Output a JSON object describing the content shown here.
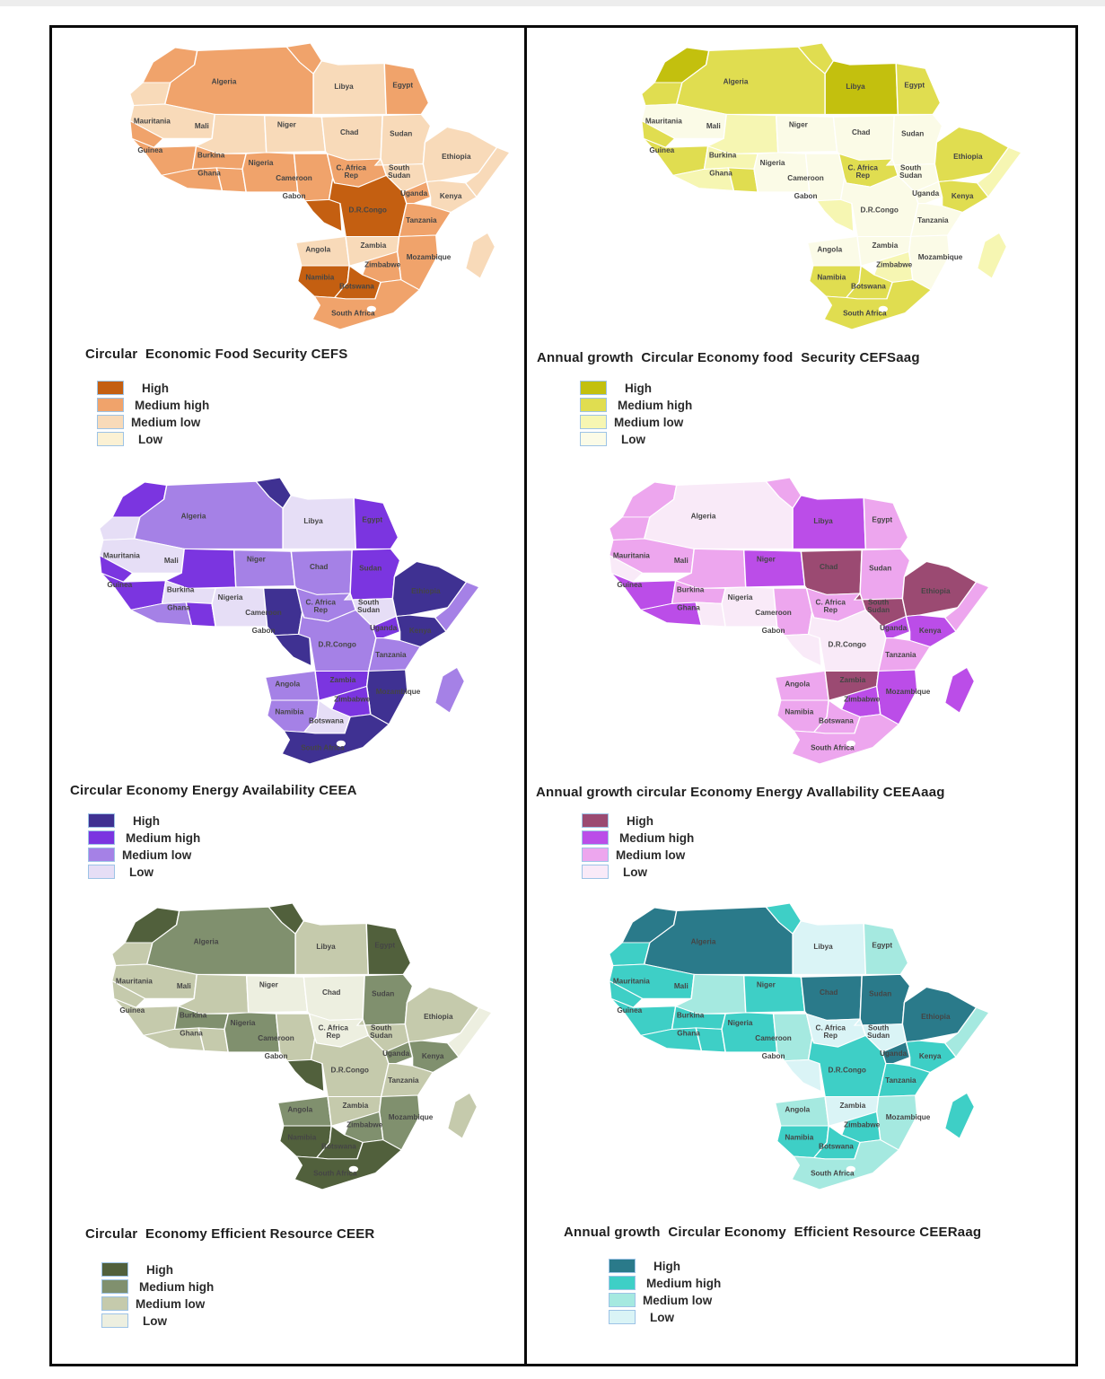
{
  "page": {
    "background": "#ffffff",
    "top_strip_color": "#ededed",
    "frame_border_color": "#0a0a0a"
  },
  "legend_labels": [
    "High",
    "Medium high",
    "Medium low",
    "Low"
  ],
  "country_labels": {
    "algeria": "Algeria",
    "libya": "Libya",
    "egypt": "Egypt",
    "mauritania": "Mauritania",
    "mali": "Mali",
    "niger": "Niger",
    "chad": "Chad",
    "sudan": "Sudan",
    "guinea": "Guinea",
    "burkina": "Burkina",
    "ghana": "Ghana",
    "nigeria": "Nigeria",
    "car": [
      "C. Africa",
      "Rep"
    ],
    "south_sudan": [
      "South",
      "Sudan"
    ],
    "ethiopia": "Ethiopia",
    "cameroon": "Cameroon",
    "gabon_congo": "Gabon",
    "drcongo": "D.R.Congo",
    "uganda": "Uganda",
    "kenya": "Kenya",
    "tanzania": "Tanzania",
    "angola": "Angola",
    "zambia": "Zambia",
    "mozambique": "Mozambique",
    "zimbabwe": "Zimbabwe",
    "namibia": "Namibia",
    "botswana": "Botswana",
    "south_africa": "South Africa"
  },
  "chart_data": [
    {
      "id": "cefs",
      "type": "choropleth_map",
      "region": "Africa",
      "title": "Circular  Economic Food Security CEFS",
      "legend": [
        {
          "level": "H",
          "label": "High",
          "color": "#c45f11"
        },
        {
          "level": "MH",
          "label": "Medium high",
          "color": "#f0a36b"
        },
        {
          "level": "ML",
          "label": "Medium low",
          "color": "#f8dab9"
        },
        {
          "level": "L",
          "label": "Low",
          "color": "#fbf1d4"
        }
      ],
      "values": {
        "morocco": "MH",
        "western_sahara": "ML",
        "algeria": "MH",
        "tunisia": "MH",
        "libya": "ML",
        "egypt": "MH",
        "mauritania": "ML",
        "mali": "ML",
        "niger": "ML",
        "chad": "ML",
        "sudan": "ML",
        "senegal": "MH",
        "guinea": "MH",
        "ivory_coast": "MH",
        "burkina": "MH",
        "ghana": "MH",
        "nigeria": "MH",
        "cameroon": "MH",
        "car": "MH",
        "south_sudan": "ML",
        "ethiopia": "ML",
        "somalia": "ML",
        "gabon_congo": "H",
        "drcongo": "H",
        "uganda": "MH",
        "kenya": "ML",
        "tanzania": "MH",
        "angola": "ML",
        "zambia": "ML",
        "mozambique": "MH",
        "zimbabwe": "MH",
        "namibia": "H",
        "botswana": "H",
        "south_africa": "MH",
        "madagascar": "ML"
      }
    },
    {
      "id": "cefsaag",
      "type": "choropleth_map",
      "region": "Africa",
      "title": "Annual growth  Circular Economy food  Security CEFSaag",
      "legend": [
        {
          "level": "H",
          "label": "High",
          "color": "#c3c00e"
        },
        {
          "level": "MH",
          "label": "Medium high",
          "color": "#e0dd50"
        },
        {
          "level": "ML",
          "label": "Medium low",
          "color": "#f6f6b2"
        },
        {
          "level": "L",
          "label": "Low",
          "color": "#fbfbe7"
        }
      ],
      "values": {
        "morocco": "H",
        "western_sahara": "MH",
        "algeria": "MH",
        "tunisia": "MH",
        "libya": "H",
        "egypt": "MH",
        "mauritania": "L",
        "mali": "ML",
        "niger": "L",
        "chad": "L",
        "sudan": "L",
        "senegal": "MH",
        "guinea": "MH",
        "ivory_coast": "ML",
        "burkina": "ML",
        "ghana": "MH",
        "nigeria": "L",
        "cameroon": "L",
        "car": "MH",
        "south_sudan": "L",
        "ethiopia": "MH",
        "somalia": "ML",
        "gabon_congo": "ML",
        "drcongo": "L",
        "uganda": "L",
        "kenya": "MH",
        "tanzania": "L",
        "angola": "L",
        "zambia": "L",
        "mozambique": "L",
        "zimbabwe": "ML",
        "namibia": "MH",
        "botswana": "MH",
        "south_africa": "MH",
        "madagascar": "ML"
      }
    },
    {
      "id": "ceea",
      "type": "choropleth_map",
      "region": "Africa",
      "title": "Circular Economy Energy Availability CEEA",
      "legend": [
        {
          "level": "H",
          "label": "High",
          "color": "#3f3192"
        },
        {
          "level": "MH",
          "label": "Medium high",
          "color": "#7b35e0"
        },
        {
          "level": "ML",
          "label": "Medium low",
          "color": "#a581e6"
        },
        {
          "level": "L",
          "label": "Low",
          "color": "#e6def6"
        }
      ],
      "values": {
        "morocco": "MH",
        "western_sahara": "L",
        "algeria": "ML",
        "tunisia": "H",
        "libya": "L",
        "egypt": "MH",
        "mauritania": "L",
        "mali": "MH",
        "niger": "ML",
        "chad": "ML",
        "sudan": "MH",
        "senegal": "MH",
        "guinea": "MH",
        "ivory_coast": "ML",
        "burkina": "L",
        "ghana": "MH",
        "nigeria": "L",
        "cameroon": "H",
        "car": "ML",
        "south_sudan": "L",
        "ethiopia": "H",
        "somalia": "ML",
        "gabon_congo": "H",
        "drcongo": "ML",
        "uganda": "MH",
        "kenya": "H",
        "tanzania": "ML",
        "angola": "ML",
        "zambia": "MH",
        "mozambique": "H",
        "zimbabwe": "MH",
        "namibia": "ML",
        "botswana": "L",
        "south_africa": "H",
        "madagascar": "ML"
      }
    },
    {
      "id": "ceeaaag",
      "type": "choropleth_map",
      "region": "Africa",
      "title": "Annual growth circular Economy Energy Avallability CEEAaag",
      "legend": [
        {
          "level": "H",
          "label": "High",
          "color": "#9b4a72"
        },
        {
          "level": "MH",
          "label": "Medium high",
          "color": "#bb4de8"
        },
        {
          "level": "ML",
          "label": "Medium low",
          "color": "#eda6ee"
        },
        {
          "level": "L",
          "label": "Low",
          "color": "#f9eaf8"
        }
      ],
      "values": {
        "morocco": "ML",
        "western_sahara": "ML",
        "algeria": "L",
        "tunisia": "ML",
        "libya": "MH",
        "egypt": "ML",
        "mauritania": "ML",
        "mali": "ML",
        "niger": "MH",
        "chad": "H",
        "sudan": "ML",
        "senegal": "L",
        "guinea": "MH",
        "ivory_coast": "MH",
        "burkina": "ML",
        "ghana": "L",
        "nigeria": "L",
        "cameroon": "ML",
        "car": "ML",
        "south_sudan": "H",
        "ethiopia": "H",
        "somalia": "ML",
        "gabon_congo": "L",
        "drcongo": "L",
        "uganda": "MH",
        "kenya": "MH",
        "tanzania": "ML",
        "angola": "ML",
        "zambia": "H",
        "mozambique": "MH",
        "zimbabwe": "MH",
        "namibia": "ML",
        "botswana": "ML",
        "south_africa": "ML",
        "madagascar": "MH"
      }
    },
    {
      "id": "ceer",
      "type": "choropleth_map",
      "region": "Africa",
      "title": "Circular  Economy Efficient Resource CEER",
      "legend": [
        {
          "level": "H",
          "label": "High",
          "color": "#51603c"
        },
        {
          "level": "MH",
          "label": "Medium high",
          "color": "#80906e"
        },
        {
          "level": "ML",
          "label": "Medium low",
          "color": "#c5caac"
        },
        {
          "level": "L",
          "label": "Low",
          "color": "#edefe0"
        }
      ],
      "values": {
        "morocco": "H",
        "western_sahara": "ML",
        "algeria": "MH",
        "tunisia": "H",
        "libya": "ML",
        "egypt": "H",
        "mauritania": "ML",
        "mali": "ML",
        "niger": "L",
        "chad": "L",
        "sudan": "MH",
        "senegal": "ML",
        "guinea": "ML",
        "ivory_coast": "ML",
        "burkina": "MH",
        "ghana": "ML",
        "nigeria": "MH",
        "cameroon": "ML",
        "car": "L",
        "south_sudan": "ML",
        "ethiopia": "ML",
        "somalia": "L",
        "gabon_congo": "H",
        "drcongo": "ML",
        "uganda": "MH",
        "kenya": "MH",
        "tanzania": "ML",
        "angola": "MH",
        "zambia": "ML",
        "mozambique": "MH",
        "zimbabwe": "MH",
        "namibia": "H",
        "botswana": "H",
        "south_africa": "H",
        "madagascar": "ML"
      }
    },
    {
      "id": "ceeraag",
      "type": "choropleth_map",
      "region": "Africa",
      "title": "Annual growth  Circular Economy  Efficient Resource CEERaag",
      "legend": [
        {
          "level": "H",
          "label": "High",
          "color": "#2a7a8a"
        },
        {
          "level": "MH",
          "label": "Medium high",
          "color": "#3ecfc6"
        },
        {
          "level": "ML",
          "label": "Medium low",
          "color": "#a5e9e0"
        },
        {
          "level": "L",
          "label": "Low",
          "color": "#daf4f6"
        }
      ],
      "values": {
        "morocco": "H",
        "western_sahara": "MH",
        "algeria": "H",
        "tunisia": "MH",
        "libya": "L",
        "egypt": "ML",
        "mauritania": "MH",
        "mali": "ML",
        "niger": "MH",
        "chad": "H",
        "sudan": "H",
        "senegal": "MH",
        "guinea": "MH",
        "ivory_coast": "MH",
        "burkina": "MH",
        "ghana": "MH",
        "nigeria": "MH",
        "cameroon": "ML",
        "car": "L",
        "south_sudan": "L",
        "ethiopia": "H",
        "somalia": "ML",
        "gabon_congo": "L",
        "drcongo": "MH",
        "uganda": "H",
        "kenya": "MH",
        "tanzania": "MH",
        "angola": "ML",
        "zambia": "L",
        "mozambique": "ML",
        "zimbabwe": "MH",
        "namibia": "MH",
        "botswana": "MH",
        "south_africa": "ML",
        "madagascar": "MH"
      }
    }
  ]
}
